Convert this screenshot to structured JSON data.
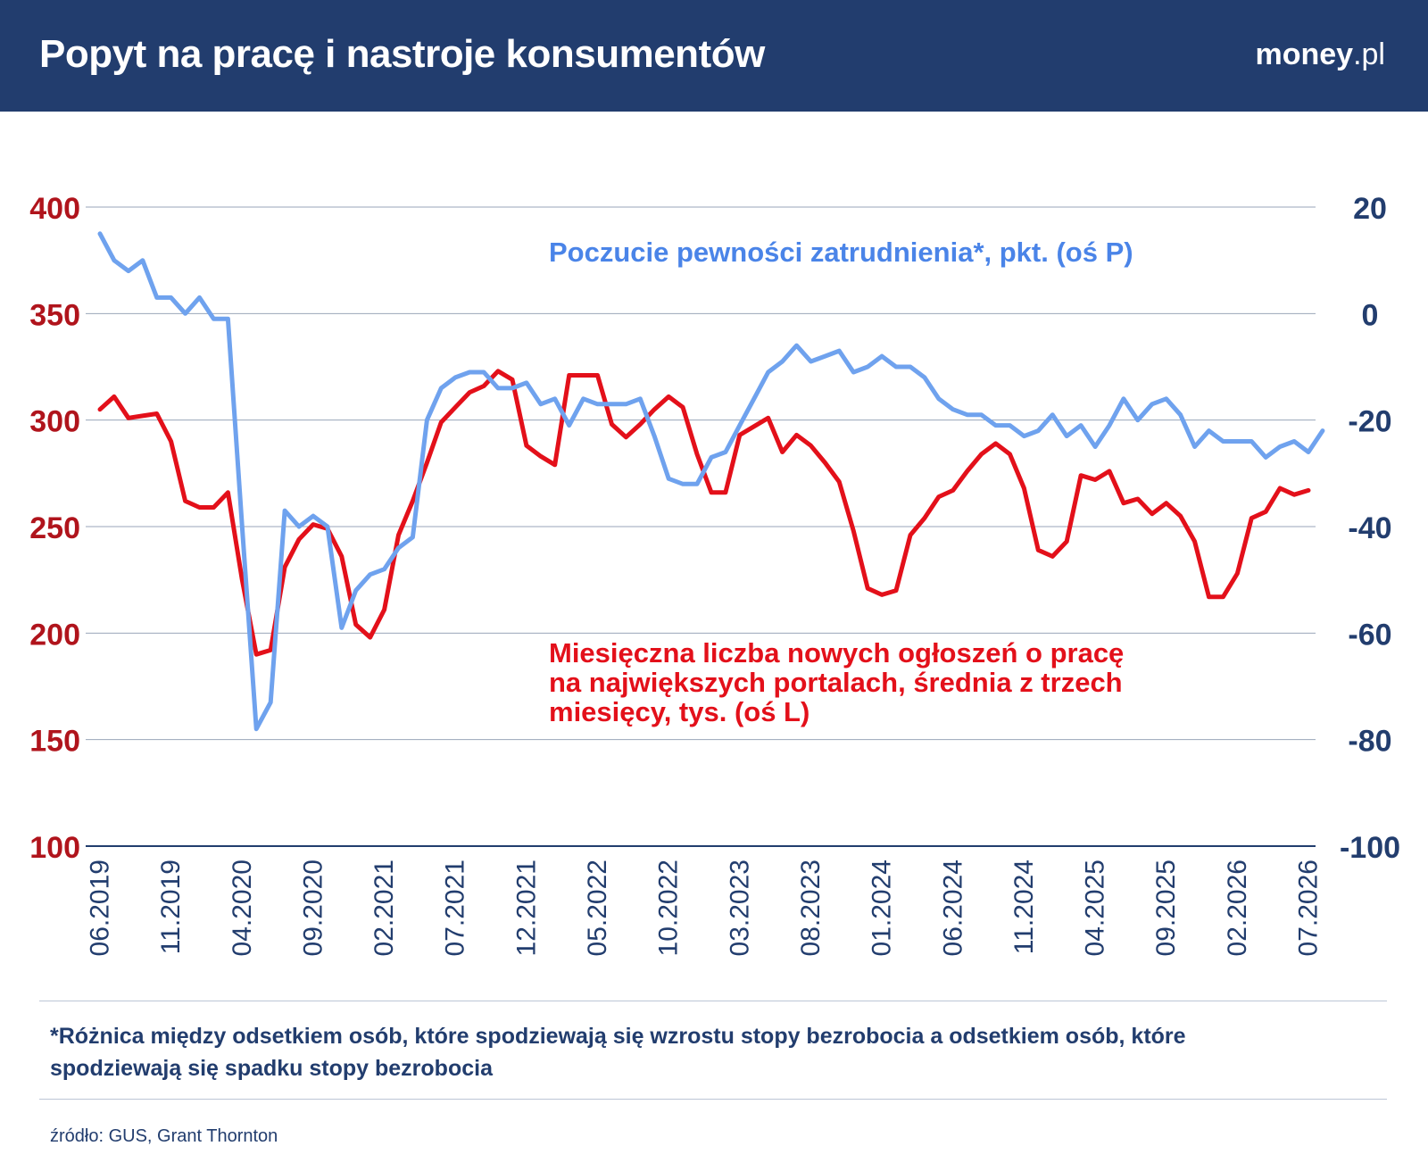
{
  "header": {
    "title": "Popyt na pracę i nastroje konsumentów",
    "logo_bold": "money",
    "logo_light": ".pl"
  },
  "footnote": "*Różnica między odsetkiem osób, które spodziewają się wzrostu stopy bezrobocia a odsetkiem osób, które spodziewają się spadku stopy bezrobocia",
  "source": "źródło: GUS, Grant Thornton",
  "colors": {
    "header_bg": "#223d6e",
    "red_series": "#e3101a",
    "blue_series": "#6fa2ee",
    "left_axis_text": "#b0141c",
    "right_axis_text": "#223d6e",
    "grid": "#9aa6b8"
  },
  "chart_data": {
    "type": "line",
    "x_start": "06.2019",
    "x_ticks": [
      "06.2019",
      "11.2019",
      "04.2020",
      "09.2020",
      "02.2021",
      "07.2021",
      "12.2021",
      "05.2022",
      "10.2022",
      "03.2023",
      "08.2023",
      "01.2024",
      "06.2024",
      "11.2024",
      "04.2025",
      "09.2025",
      "02.2026",
      "07.2026"
    ],
    "y_left": {
      "min": 100,
      "max": 400,
      "ticks": [
        100,
        150,
        200,
        250,
        300,
        350,
        400
      ]
    },
    "y_right": {
      "min": -100,
      "max": 20,
      "ticks": [
        -100,
        -80,
        -60,
        -40,
        -20,
        0,
        20
      ]
    },
    "grid": true,
    "series": [
      {
        "name": "Miesięczna liczba nowych ogłoszeń o pracę na największych portalach, średnia z trzech miesięcy, tys. (oś L)",
        "axis": "left",
        "values": [
          305,
          311,
          301,
          302,
          303,
          290,
          262,
          259,
          259,
          266,
          225,
          190,
          192,
          231,
          244,
          251,
          249,
          236,
          204,
          198,
          211,
          246,
          262,
          280,
          299,
          306,
          313,
          316,
          323,
          319,
          288,
          283,
          279,
          321,
          321,
          321,
          298,
          292,
          298,
          305,
          311,
          306,
          284,
          266,
          266,
          293,
          297,
          301,
          285,
          293,
          288,
          280,
          271,
          248,
          221,
          218,
          220,
          246,
          254,
          264,
          267,
          276,
          284,
          289,
          284,
          268,
          239,
          236,
          243,
          274,
          272,
          276,
          261,
          263,
          256,
          261,
          255,
          243,
          217,
          217,
          228,
          254,
          257,
          268,
          265,
          267
        ],
        "color": "#e3101a"
      },
      {
        "name": "Poczucie pewności zatrudnienia*, pkt. (oś P)",
        "axis": "right",
        "values": [
          15,
          10,
          8,
          10,
          3,
          3,
          0,
          3,
          -1,
          -1,
          -40,
          -78,
          -73,
          -37,
          -40,
          -38,
          -40,
          -59,
          -52,
          -49,
          -48,
          -44,
          -42,
          -20,
          -14,
          -12,
          -11,
          -11,
          -14,
          -14,
          -13,
          -17,
          -16,
          -21,
          -16,
          -17,
          -17,
          -17,
          -16,
          -23,
          -31,
          -32,
          -32,
          -27,
          -26,
          -21,
          -16,
          -11,
          -9,
          -6,
          -9,
          -8,
          -7,
          -11,
          -10,
          -8,
          -10,
          -10,
          -12,
          -16,
          -18,
          -19,
          -19,
          -21,
          -21,
          -23,
          -22,
          -19,
          -23,
          -21,
          -25,
          -21,
          -16,
          -20,
          -17,
          -16,
          -19,
          -25,
          -22,
          -24,
          -24,
          -24,
          -27,
          -25,
          -24,
          -26,
          -22
        ],
        "color": "#6fa2ee"
      }
    ]
  }
}
